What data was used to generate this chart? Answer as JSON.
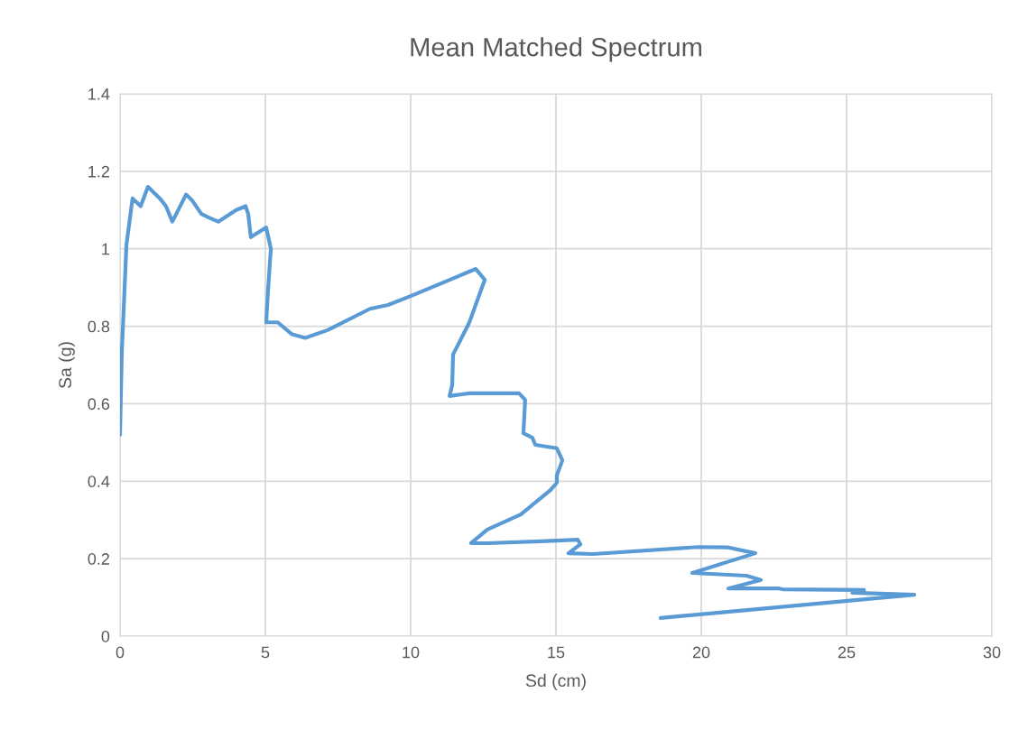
{
  "chart_data": {
    "type": "line",
    "title": "Mean Matched Spectrum",
    "xlabel": "Sd (cm)",
    "ylabel": "Sa (g)",
    "series": [
      {
        "color": "#5b9bd5",
        "x": [
          0,
          0.06,
          0.22,
          0.43,
          0.71,
          0.96,
          1.37,
          1.58,
          1.8,
          2.27,
          2.48,
          2.8,
          3.07,
          3.38,
          4.0,
          4.32,
          4.41,
          4.5,
          5.03,
          5.19,
          5.09,
          5.03,
          5.43,
          5.9,
          6.37,
          7.14,
          8.6,
          9.22,
          10.0,
          12.24,
          12.55,
          12.02,
          11.46,
          11.43,
          11.34,
          12.02,
          13.73,
          13.94,
          13.88,
          14.19,
          14.29,
          15.03,
          15.22,
          15.03,
          15.03,
          14.81,
          13.79,
          12.64,
          12.08,
          12.64,
          14.5,
          15.75,
          15.84,
          15.43,
          16.27,
          19.88,
          20.93,
          21.86,
          19.69,
          21.55,
          22.05,
          20.93,
          22.67,
          22.8,
          25.6,
          25.2,
          27.33,
          18.6
        ],
        "values": [
          0.52,
          0.73,
          1.01,
          1.13,
          1.11,
          1.16,
          1.13,
          1.11,
          1.07,
          1.14,
          1.125,
          1.09,
          1.08,
          1.07,
          1.1,
          1.11,
          1.09,
          1.03,
          1.055,
          1.0,
          0.89,
          0.81,
          0.81,
          0.78,
          0.77,
          0.79,
          0.845,
          0.855,
          0.878,
          0.948,
          0.92,
          0.81,
          0.727,
          0.648,
          0.62,
          0.627,
          0.627,
          0.61,
          0.524,
          0.512,
          0.494,
          0.485,
          0.454,
          0.415,
          0.396,
          0.377,
          0.314,
          0.275,
          0.24,
          0.24,
          0.245,
          0.249,
          0.237,
          0.214,
          0.212,
          0.23,
          0.229,
          0.214,
          0.163,
          0.156,
          0.145,
          0.123,
          0.123,
          0.121,
          0.119,
          0.112,
          0.107,
          0.047
        ]
      }
    ],
    "xlim": [
      0,
      30
    ],
    "xticks": [
      0,
      5,
      10,
      15,
      20,
      25,
      30
    ],
    "ylim": [
      0,
      1.4
    ],
    "yticks": [
      {
        "value": 0,
        "label": "0"
      },
      {
        "value": 0.2,
        "label": "0.2"
      },
      {
        "value": 0.4,
        "label": "0.4"
      },
      {
        "value": 0.6,
        "label": "0.6"
      },
      {
        "value": 0.8,
        "label": "0.8"
      },
      {
        "value": 1,
        "label": "1"
      },
      {
        "value": 1.2,
        "label": "1.2"
      },
      {
        "value": 1.4,
        "label": "1.4"
      }
    ],
    "grid": true,
    "marker": "none",
    "line_style": "solid"
  }
}
